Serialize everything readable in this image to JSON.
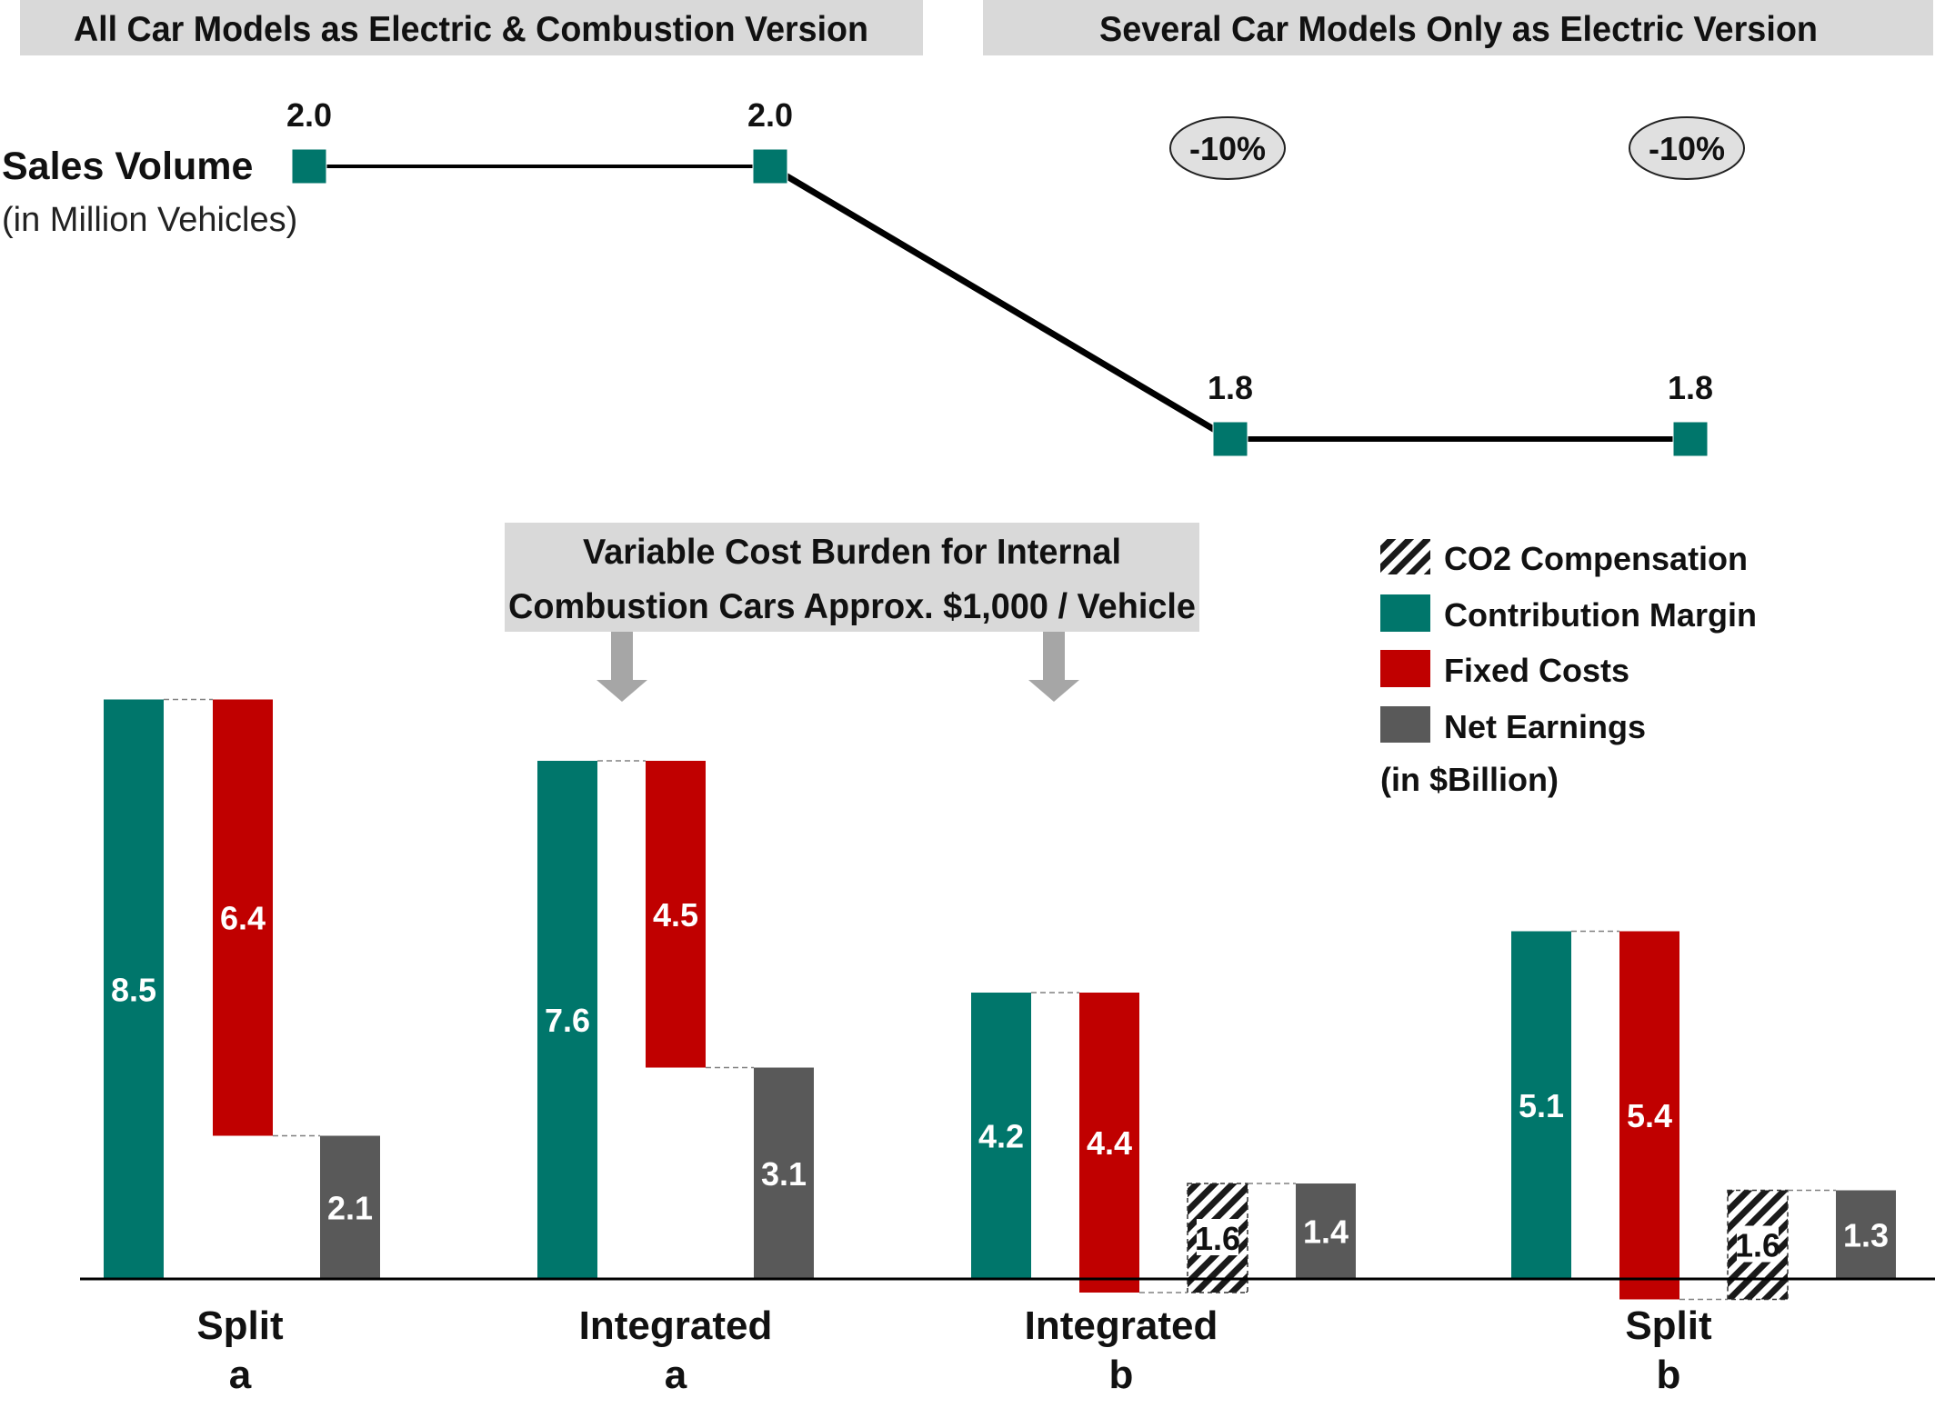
{
  "headers": {
    "left": "All Car Models as Electric & Combustion Version",
    "right": "Several Car Models Only as Electric Version"
  },
  "sales_volume": {
    "label": "Sales Volume",
    "unit": "(in Million Vehicles)",
    "change_badges": [
      "-10%",
      "-10%"
    ]
  },
  "callout": {
    "line1": "Variable Cost Burden for Internal",
    "line2": "Combustion Cars Approx. $1,000 / Vehicle"
  },
  "legend": {
    "items": [
      {
        "label": "CO2 Compensation",
        "key": "co2"
      },
      {
        "label": "Contribution Margin",
        "key": "cm"
      },
      {
        "label": "Fixed Costs",
        "key": "fc"
      },
      {
        "label": "Net Earnings",
        "key": "ne"
      }
    ],
    "unit": "(in $Billion)"
  },
  "colors": {
    "contribution_margin": "#00766B",
    "fixed_costs": "#C00000",
    "net_earnings": "#595959",
    "header_bg": "#D9D9D9",
    "badge_bg": "#E0E0E0",
    "arrow": "#A6A6A6",
    "line": "#000000"
  },
  "chart_data": [
    {
      "type": "line",
      "x": [
        "Split a",
        "Integrated a",
        "Integrated b",
        "Split b"
      ],
      "values": [
        2.0,
        2.0,
        1.8,
        1.8
      ],
      "labels": [
        "2.0",
        "2.0",
        "1.8",
        "1.8"
      ]
    },
    {
      "type": "bar",
      "subtype": "waterfall",
      "categories": [
        {
          "line1": "Split",
          "line2": "a"
        },
        {
          "line1": "Integrated",
          "line2": "a"
        },
        {
          "line1": "Integrated",
          "line2": "b"
        },
        {
          "line1": "Split",
          "line2": "b"
        }
      ],
      "series": [
        {
          "name": "Contribution Margin",
          "values": [
            8.5,
            7.6,
            4.2,
            5.1
          ],
          "labels": [
            "8.5",
            "7.6",
            "4.2",
            "5.1"
          ]
        },
        {
          "name": "Fixed Costs",
          "values": [
            6.4,
            4.5,
            4.4,
            5.4
          ],
          "labels": [
            "6.4",
            "4.5",
            "4.4",
            "5.4"
          ]
        },
        {
          "name": "CO2 Compensation",
          "values": [
            null,
            null,
            1.6,
            1.6
          ],
          "labels": [
            null,
            null,
            "1.6",
            "1.6"
          ]
        },
        {
          "name": "Net Earnings",
          "values": [
            2.1,
            3.1,
            1.4,
            1.3
          ],
          "labels": [
            "2.1",
            "3.1",
            "1.4",
            "1.3"
          ]
        }
      ]
    }
  ]
}
